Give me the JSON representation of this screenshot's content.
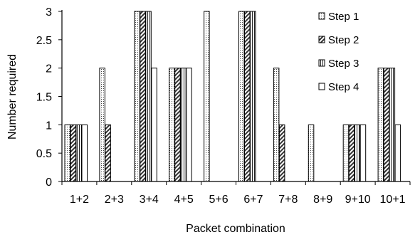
{
  "chart_data": {
    "type": "bar",
    "title": "",
    "xlabel": "Packet combination",
    "ylabel": "Number required",
    "ylim": [
      0,
      3
    ],
    "yticks": [
      "0",
      "0.5",
      "1",
      "1.5",
      "2",
      "2.5",
      "3"
    ],
    "categories": [
      "1+2",
      "2+3",
      "3+4",
      "4+5",
      "5+6",
      "6+7",
      "7+8",
      "8+9",
      "9+10",
      "10+1"
    ],
    "series": [
      {
        "name": "Step 1",
        "pattern": "dots",
        "values": [
          1,
          2,
          3,
          2,
          3,
          3,
          2,
          1,
          1,
          2
        ]
      },
      {
        "name": "Step 2",
        "pattern": "diagonal-stripes",
        "values": [
          1,
          1,
          3,
          2,
          0,
          3,
          1,
          0,
          1,
          2
        ]
      },
      {
        "name": "Step 3",
        "pattern": "vertical-stripes",
        "values": [
          1,
          0,
          3,
          2,
          0,
          3,
          0,
          0,
          1,
          2
        ]
      },
      {
        "name": "Step 4",
        "pattern": "solid-white",
        "values": [
          1,
          0,
          2,
          2,
          0,
          0,
          0,
          0,
          1,
          1
        ]
      }
    ],
    "legend_position": "top-right",
    "grid": false
  }
}
